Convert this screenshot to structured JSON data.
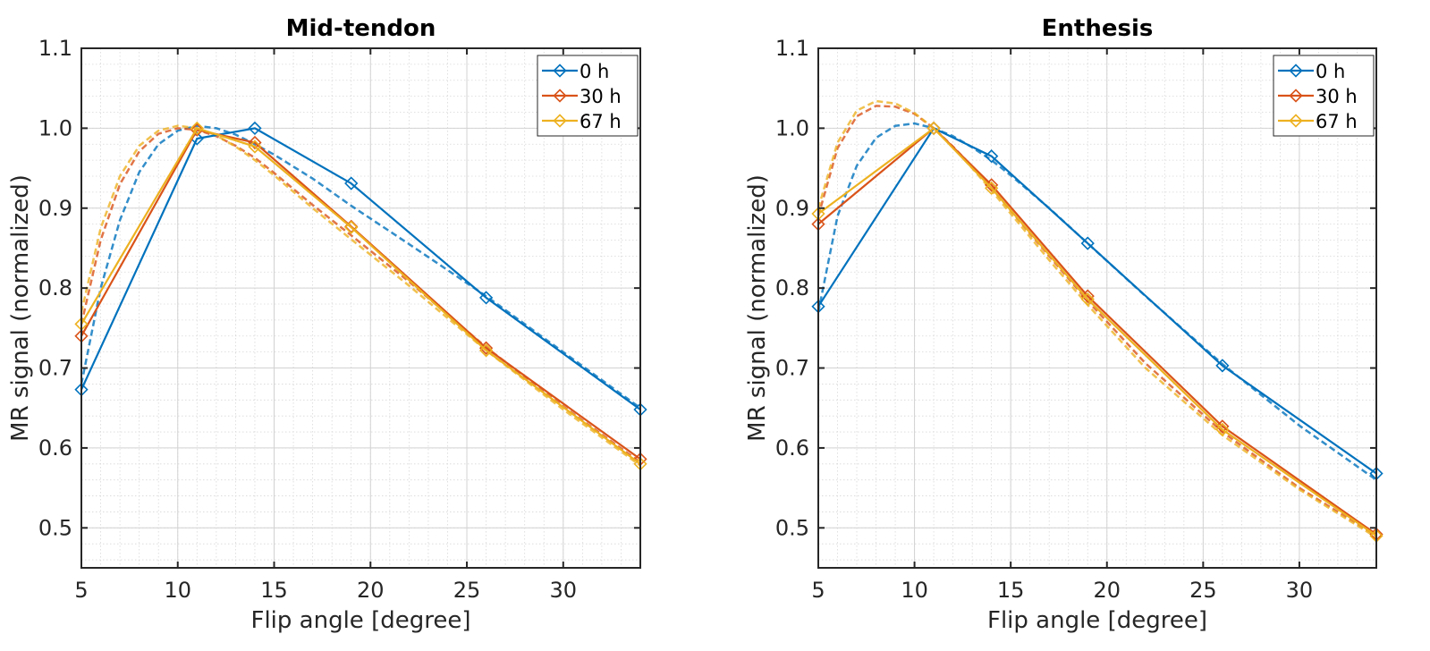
{
  "chart_data": [
    {
      "type": "line",
      "title": "Mid-tendon",
      "xlabel": "Flip angle [degree]",
      "ylabel": "MR signal (normalized)",
      "xlim": [
        5,
        34
      ],
      "ylim": [
        0.45,
        1.1
      ],
      "xticks": [
        5,
        10,
        15,
        20,
        25,
        30
      ],
      "yticks": [
        0.5,
        0.6,
        0.7,
        0.8,
        0.9,
        1.0,
        1.1
      ],
      "xtick_labels": [
        "5",
        "10",
        "15",
        "20",
        "25",
        "30"
      ],
      "ytick_labels": [
        "0.5",
        "0.6",
        "0.7",
        "0.8",
        "0.9",
        "1.0",
        "1.1"
      ],
      "grid": true,
      "legend_position": "top-right",
      "series": [
        {
          "name": "0 h",
          "color": "#0072BD",
          "x": [
            5,
            11,
            14,
            19,
            26,
            34
          ],
          "y": [
            0.673,
            0.987,
            1.0,
            0.931,
            0.788,
            0.648
          ],
          "fit": {
            "x": [
              5,
              6,
              7,
              8,
              9,
              10,
              11,
              12,
              13,
              14,
              15,
              17,
              19,
              22,
              26,
              30,
              34
            ],
            "y": [
              0.68,
              0.8,
              0.885,
              0.945,
              0.98,
              0.997,
              1.003,
              1.0,
              0.992,
              0.98,
              0.967,
              0.937,
              0.903,
              0.855,
              0.79,
              0.72,
              0.65
            ]
          }
        },
        {
          "name": "30 h",
          "color": "#D95319",
          "x": [
            5,
            11,
            14,
            19,
            26,
            34
          ],
          "y": [
            0.74,
            0.998,
            0.982,
            0.877,
            0.725,
            0.586
          ],
          "fit": {
            "x": [
              5,
              6,
              7,
              8,
              9,
              10,
              11,
              12,
              13,
              14,
              15,
              17,
              19,
              22,
              26,
              30,
              34
            ],
            "y": [
              0.755,
              0.86,
              0.93,
              0.971,
              0.993,
              1.0,
              0.998,
              0.99,
              0.978,
              0.963,
              0.944,
              0.904,
              0.866,
              0.808,
              0.726,
              0.652,
              0.582
            ]
          }
        },
        {
          "name": "67 h",
          "color": "#EDB120",
          "x": [
            5,
            11,
            14,
            19,
            26,
            34
          ],
          "y": [
            0.755,
            1.0,
            0.977,
            0.876,
            0.722,
            0.58
          ],
          "fit": {
            "x": [
              5,
              6,
              7,
              8,
              9,
              10,
              11,
              12,
              13,
              14,
              15,
              17,
              19,
              22,
              26,
              30,
              34
            ],
            "y": [
              0.77,
              0.875,
              0.94,
              0.978,
              0.997,
              1.003,
              1.0,
              0.991,
              0.977,
              0.96,
              0.941,
              0.9,
              0.861,
              0.803,
              0.722,
              0.648,
              0.578
            ]
          }
        }
      ]
    },
    {
      "type": "line",
      "title": "Enthesis",
      "xlabel": "Flip angle [degree]",
      "ylabel": "MR signal (normalized)",
      "xlim": [
        5,
        34
      ],
      "ylim": [
        0.45,
        1.1
      ],
      "xticks": [
        5,
        10,
        15,
        20,
        25,
        30
      ],
      "yticks": [
        0.5,
        0.6,
        0.7,
        0.8,
        0.9,
        1.0,
        1.1
      ],
      "xtick_labels": [
        "5",
        "10",
        "15",
        "20",
        "25",
        "30"
      ],
      "ytick_labels": [
        "0.5",
        "0.6",
        "0.7",
        "0.8",
        "0.9",
        "1.0",
        "1.1"
      ],
      "grid": true,
      "legend_position": "top-right",
      "series": [
        {
          "name": "0 h",
          "color": "#0072BD",
          "x": [
            5,
            11,
            14,
            19,
            26,
            34
          ],
          "y": [
            0.777,
            1.0,
            0.965,
            0.856,
            0.703,
            0.568
          ],
          "fit": {
            "x": [
              5,
              6,
              7,
              8,
              9,
              10,
              11,
              12,
              13,
              14,
              15,
              17,
              19,
              22,
              26,
              30,
              34
            ],
            "y": [
              0.77,
              0.89,
              0.953,
              0.988,
              1.003,
              1.006,
              1.0,
              0.99,
              0.976,
              0.96,
              0.941,
              0.9,
              0.856,
              0.79,
              0.705,
              0.628,
              0.56
            ]
          }
        },
        {
          "name": "30 h",
          "color": "#D95319",
          "x": [
            5,
            11,
            14,
            19,
            26,
            34
          ],
          "y": [
            0.88,
            1.0,
            0.929,
            0.79,
            0.627,
            0.492
          ],
          "fit": {
            "x": [
              5,
              6,
              7,
              8,
              9,
              10,
              11,
              12,
              13,
              14,
              15,
              17,
              19,
              22,
              26,
              30,
              34
            ],
            "y": [
              0.89,
              0.975,
              1.015,
              1.028,
              1.027,
              1.018,
              1.0,
              0.977,
              0.952,
              0.925,
              0.897,
              0.84,
              0.784,
              0.706,
              0.62,
              0.55,
              0.49
            ]
          }
        },
        {
          "name": "67 h",
          "color": "#EDB120",
          "x": [
            5,
            11,
            14,
            19,
            26,
            34
          ],
          "y": [
            0.893,
            1.0,
            0.925,
            0.786,
            0.623,
            0.49
          ],
          "fit": {
            "x": [
              5,
              6,
              7,
              8,
              9,
              10,
              11,
              12,
              13,
              14,
              15,
              17,
              19,
              22,
              26,
              30,
              34
            ],
            "y": [
              0.9,
              0.982,
              1.022,
              1.034,
              1.031,
              1.019,
              1.0,
              0.976,
              0.95,
              0.922,
              0.893,
              0.835,
              0.779,
              0.7,
              0.616,
              0.548,
              0.488
            ]
          }
        }
      ]
    }
  ]
}
